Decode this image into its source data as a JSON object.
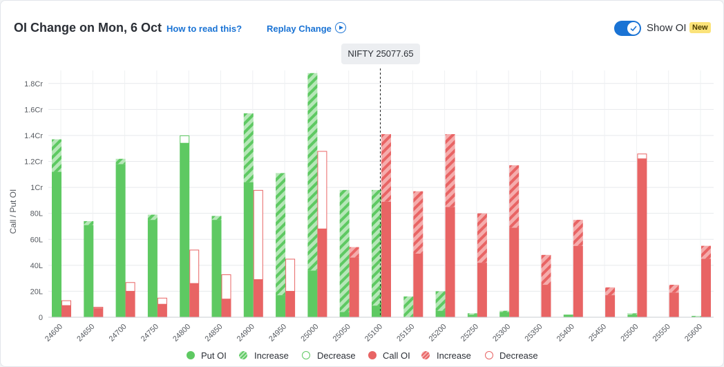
{
  "header": {
    "title": "OI Change on Mon, 6 Oct",
    "how_to_read": "How to read this?",
    "replay": "Replay Change",
    "show_oi_label": "Show OI",
    "new_badge": "New",
    "show_oi_on": true
  },
  "spot_label": "NIFTY 25077.65",
  "colors": {
    "put": "#5ec962",
    "put_light": "#b6e7b8",
    "call": "#e86464",
    "call_light": "#f5acac",
    "accent": "#1a73d4"
  },
  "legend": [
    {
      "label": "Put OI",
      "style": "put-solid"
    },
    {
      "label": "Increase",
      "style": "put-hatch"
    },
    {
      "label": "Decrease",
      "style": "put-outline"
    },
    {
      "label": "Call OI",
      "style": "call-solid"
    },
    {
      "label": "Increase",
      "style": "call-hatch"
    },
    {
      "label": "Decrease",
      "style": "call-outline"
    }
  ],
  "chart_data": {
    "type": "bar",
    "ylabel": "Call / Put OI",
    "yticks": [
      "0",
      "20L",
      "40L",
      "60L",
      "80L",
      "1Cr",
      "1.2Cr",
      "1.4Cr",
      "1.6Cr",
      "1.8Cr"
    ],
    "ylim": [
      0,
      190
    ],
    "unit": "lakh",
    "spot_after_category": "25100",
    "categories": [
      "24600",
      "24650",
      "24700",
      "24750",
      "24800",
      "24850",
      "24900",
      "24950",
      "25000",
      "25050",
      "25100",
      "25150",
      "25200",
      "25250",
      "25300",
      "25350",
      "25400",
      "25450",
      "25500",
      "25550",
      "25600"
    ],
    "series": [
      {
        "name": "Put OI",
        "base": [
          112,
          71,
          118,
          75,
          134,
          75,
          104,
          17,
          36,
          4,
          9,
          0,
          5,
          2,
          4,
          0,
          2,
          0,
          2,
          0,
          0
        ],
        "increase": [
          25,
          3,
          4,
          4,
          0,
          3,
          53,
          94,
          152,
          94,
          89,
          16,
          15,
          1,
          1,
          0,
          0,
          0,
          1,
          0,
          1
        ],
        "decrease": [
          0,
          0,
          0,
          0,
          6,
          0,
          0,
          0,
          0,
          0,
          0,
          0,
          0,
          0,
          0,
          0,
          0,
          0,
          0,
          0,
          0
        ]
      },
      {
        "name": "Call OI",
        "base": [
          9,
          7,
          20,
          10,
          26,
          14,
          29,
          20,
          68,
          46,
          89,
          49,
          85,
          42,
          69,
          25,
          55,
          17,
          122,
          19,
          45
        ],
        "increase": [
          0,
          0,
          0,
          0,
          0,
          0,
          0,
          0,
          0,
          8,
          52,
          48,
          56,
          38,
          48,
          23,
          20,
          6,
          0,
          6,
          10
        ],
        "decrease": [
          4,
          1,
          7,
          5,
          26,
          19,
          69,
          25,
          60,
          0,
          0,
          0,
          0,
          0,
          0,
          0,
          0,
          0,
          4,
          0,
          0
        ]
      }
    ]
  }
}
